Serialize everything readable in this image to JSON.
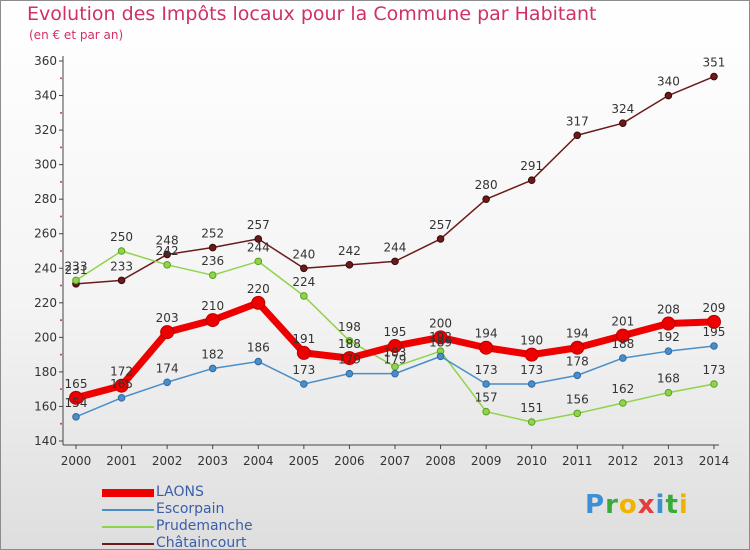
{
  "header": {
    "title": "Evolution des Impôts locaux pour la Commune par Habitant",
    "subtitle": "(en € et par an)"
  },
  "logo": {
    "letters": [
      "P",
      "r",
      "o",
      "x",
      "i",
      "t",
      "i"
    ],
    "colors": [
      "#3d8fd6",
      "#3aaa3a",
      "#f0b400",
      "#e43d3d",
      "#3d8fd6",
      "#3aaa3a",
      "#f0b400"
    ]
  },
  "chart_data": {
    "type": "line",
    "x": [
      2000,
      2001,
      2002,
      2003,
      2004,
      2005,
      2006,
      2007,
      2008,
      2009,
      2010,
      2011,
      2012,
      2013,
      2014
    ],
    "ylim": [
      140,
      360
    ],
    "yticks": [
      140,
      160,
      180,
      200,
      220,
      240,
      260,
      280,
      300,
      320,
      340,
      360
    ],
    "grid": false,
    "legend_position": "bottom-left",
    "series": [
      {
        "name": "LAONS",
        "color": "#ee0000",
        "values": [
          165,
          172,
          203,
          210,
          220,
          191,
          188,
          195,
          200,
          194,
          190,
          194,
          201,
          208,
          209
        ],
        "labels": [
          "165",
          "172",
          "203",
          "210",
          "220",
          "191",
          "188",
          "195",
          "200",
          "194",
          "190",
          "194",
          "201",
          "208",
          "209"
        ]
      },
      {
        "name": "Escorpain",
        "color": "#4a8ec9",
        "values": [
          154,
          165,
          174,
          182,
          186,
          173,
          179,
          179,
          189,
          173,
          173,
          178,
          188,
          192,
          195
        ],
        "labels": [
          "154",
          "165",
          "174",
          "182",
          "186",
          "173",
          "179",
          "179",
          "189",
          "173",
          "173",
          "178",
          "188",
          "192",
          "195"
        ]
      },
      {
        "name": "Prudemanche",
        "color": "#8fd44a",
        "values": [
          233,
          250,
          242,
          236,
          244,
          224,
          198,
          183,
          192,
          157,
          151,
          156,
          162,
          168,
          173
        ],
        "labels": [
          "233",
          "250",
          "242",
          "236",
          "244",
          "224",
          "198",
          "183",
          "192",
          "157",
          "151",
          "156",
          "162",
          "168",
          "173"
        ]
      },
      {
        "name": "Châtaincourt",
        "color": "#6b1a1a",
        "values": [
          231,
          233,
          248,
          252,
          257,
          240,
          242,
          244,
          257,
          280,
          291,
          317,
          324,
          340,
          351
        ],
        "labels": [
          "231",
          "233",
          "248",
          "252",
          "257",
          "240",
          "242",
          "244",
          "257",
          "280",
          "291",
          "317",
          "324",
          "340",
          "351"
        ]
      }
    ]
  }
}
